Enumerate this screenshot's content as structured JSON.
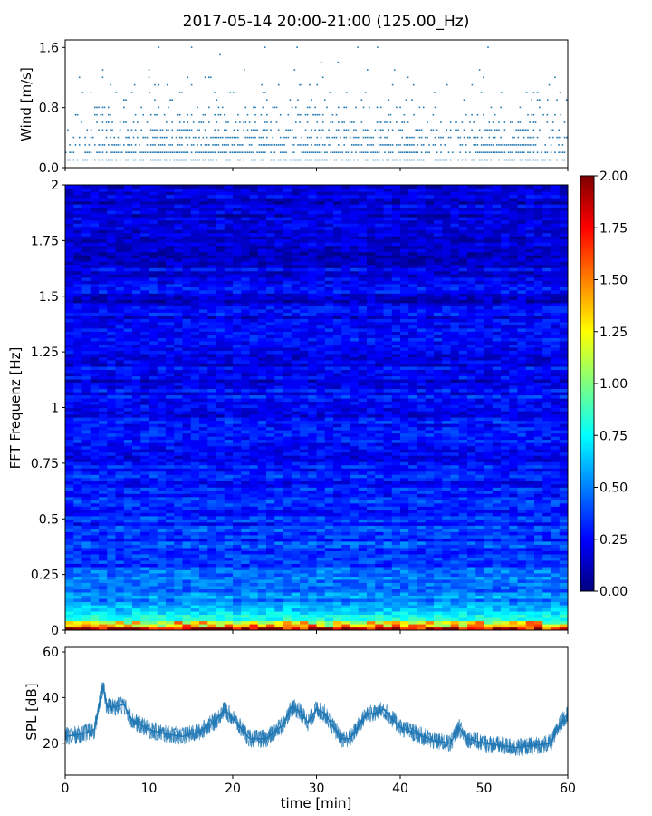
{
  "title": "2017-05-14 20:00-21:00 (125.00_Hz)",
  "chart_data": [
    {
      "type": "scatter",
      "name": "wind",
      "ylabel": "Wind [m/s]",
      "xlim": [
        0,
        60
      ],
      "ylim": [
        0,
        1.7
      ],
      "yticks": [
        0.0,
        0.8,
        1.6
      ],
      "ytick_labels": [
        "0.0",
        "0.8",
        "1.6"
      ],
      "color": "#1f77b4",
      "y_levels": [
        0.1,
        0.2,
        0.3,
        0.4,
        0.5,
        0.6,
        0.7,
        0.8,
        0.9,
        1.0,
        1.1,
        1.2,
        1.3,
        1.4,
        1.5,
        1.6
      ],
      "points": [
        [
          15.0,
          1.6
        ],
        [
          18.4,
          1.5
        ],
        [
          27.6,
          1.6
        ],
        [
          32.5,
          1.4
        ],
        [
          36.0,
          1.3
        ],
        [
          37.2,
          1.6
        ],
        [
          50.4,
          1.6
        ],
        [
          21.3,
          1.3
        ],
        [
          4.4,
          1.3
        ],
        [
          8.2,
          1.1
        ],
        [
          6.0,
          1.0
        ],
        [
          2.0,
          1.0
        ],
        [
          12.1,
          1.1
        ],
        [
          17.3,
          1.2
        ],
        [
          23.4,
          1.1
        ],
        [
          25.4,
          1.1
        ],
        [
          27.3,
          1.3
        ],
        [
          29.1,
          1.1
        ],
        [
          31.5,
          1.0
        ],
        [
          33.5,
          1.0
        ],
        [
          39.0,
          1.1
        ],
        [
          41.5,
          1.1
        ],
        [
          44.0,
          1.0
        ],
        [
          45.5,
          1.1
        ],
        [
          48.5,
          1.1
        ],
        [
          52.0,
          1.0
        ],
        [
          55.0,
          1.0
        ],
        [
          57.5,
          0.9
        ],
        [
          59.0,
          1.0
        ],
        [
          10.0,
          1.0
        ],
        [
          13.6,
          1.0
        ],
        [
          20.0,
          1.0
        ]
      ]
    },
    {
      "type": "heatmap",
      "name": "spectrogram",
      "ylabel": "FFT Frequenz [Hz]",
      "xlim": [
        0,
        60
      ],
      "ylim": [
        0,
        2
      ],
      "yticks": [
        0,
        0.25,
        0.5,
        0.75,
        1,
        1.25,
        1.5,
        1.75,
        2
      ],
      "ytick_labels": [
        "0",
        "0.25",
        "0.5",
        "0.75",
        "1",
        "1.25",
        "1.5",
        "1.75",
        "2"
      ],
      "colormap": "jet",
      "clim": [
        0,
        2
      ],
      "colorbar_ticks": [
        "0.00",
        "0.25",
        "0.50",
        "0.75",
        "1.00",
        "1.25",
        "1.50",
        "1.75",
        "2.00"
      ],
      "colorbar_values": [
        0,
        0.25,
        0.5,
        0.75,
        1.0,
        1.25,
        1.5,
        1.75,
        2.0
      ],
      "freq_profile": [
        [
          0.0,
          1.6
        ],
        [
          0.02,
          1.1
        ],
        [
          0.05,
          0.8
        ],
        [
          0.1,
          0.6
        ],
        [
          0.2,
          0.45
        ],
        [
          0.3,
          0.38
        ],
        [
          0.5,
          0.32
        ],
        [
          0.75,
          0.28
        ],
        [
          1.0,
          0.25
        ],
        [
          1.25,
          0.22
        ],
        [
          1.5,
          0.2
        ],
        [
          1.75,
          0.19
        ],
        [
          2.0,
          0.2
        ]
      ]
    },
    {
      "type": "line",
      "name": "spl",
      "xlabel": "time [min]",
      "ylabel": "SPL [dB]",
      "xlim": [
        0,
        60
      ],
      "ylim": [
        6,
        62
      ],
      "xticks": [
        0,
        10,
        20,
        30,
        40,
        50,
        60
      ],
      "xtick_labels": [
        "0",
        "10",
        "20",
        "30",
        "40",
        "50",
        "60"
      ],
      "yticks": [
        20,
        40,
        60
      ],
      "ytick_labels": [
        "20",
        "40",
        "60"
      ],
      "color": "#1f77b4",
      "x": [
        0,
        2,
        3.5,
        4.5,
        5,
        6,
        7,
        8,
        10,
        12,
        14,
        16,
        18,
        19,
        20,
        22,
        24,
        26,
        27,
        28,
        29,
        30,
        31,
        32,
        33,
        34,
        36,
        37,
        38,
        40,
        42,
        44,
        46,
        47,
        48,
        50,
        52,
        54,
        56,
        58,
        59,
        60
      ],
      "y": [
        23,
        24,
        26,
        45,
        36,
        36,
        37,
        30,
        26,
        24,
        23,
        25,
        30,
        35,
        31,
        22,
        22,
        28,
        36,
        34,
        29,
        35,
        33,
        27,
        22,
        22,
        33,
        33,
        35,
        27,
        24,
        21,
        20,
        27,
        22,
        20,
        19,
        18,
        19,
        20,
        28,
        33
      ],
      "spread": 4
    }
  ]
}
